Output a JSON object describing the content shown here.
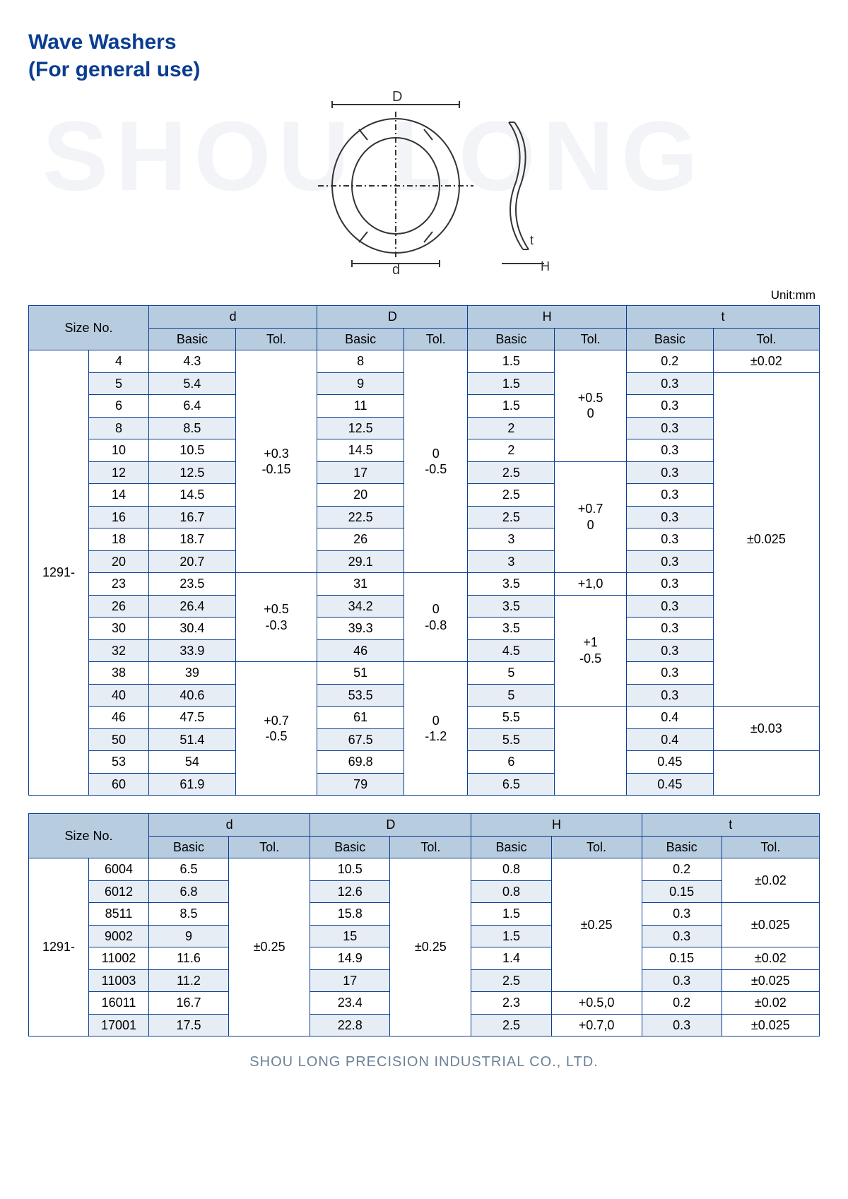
{
  "watermark": "SHOU LONG",
  "title_line1": "Wave Washers",
  "title_line2": "(For general use)",
  "unit_label": "Unit:mm",
  "footer": "SHOU LONG PRECISION INDUSTRIAL CO., LTD.",
  "diagram": {
    "label_D": "D",
    "label_d": "d",
    "label_t": "t",
    "label_H": "H"
  },
  "headers": {
    "size_no": "Size No.",
    "d": "d",
    "D": "D",
    "H": "H",
    "t": "t",
    "basic": "Basic",
    "tol": "Tol."
  },
  "prefix": "1291-",
  "table1": {
    "rows": [
      {
        "s": "4",
        "d": "4.3",
        "D": "8",
        "H": "1.5",
        "t": "0.2",
        "w": true
      },
      {
        "s": "5",
        "d": "5.4",
        "D": "9",
        "H": "1.5",
        "t": "0.3",
        "w": false
      },
      {
        "s": "6",
        "d": "6.4",
        "D": "11",
        "H": "1.5",
        "t": "0.3",
        "w": true
      },
      {
        "s": "8",
        "d": "8.5",
        "D": "12.5",
        "H": "2",
        "t": "0.3",
        "w": false
      },
      {
        "s": "10",
        "d": "10.5",
        "D": "14.5",
        "H": "2",
        "t": "0.3",
        "w": true
      },
      {
        "s": "12",
        "d": "12.5",
        "D": "17",
        "H": "2.5",
        "t": "0.3",
        "w": false
      },
      {
        "s": "14",
        "d": "14.5",
        "D": "20",
        "H": "2.5",
        "t": "0.3",
        "w": true
      },
      {
        "s": "16",
        "d": "16.7",
        "D": "22.5",
        "H": "2.5",
        "t": "0.3",
        "w": false
      },
      {
        "s": "18",
        "d": "18.7",
        "D": "26",
        "H": "3",
        "t": "0.3",
        "w": true
      },
      {
        "s": "20",
        "d": "20.7",
        "D": "29.1",
        "H": "3",
        "t": "0.3",
        "w": false
      },
      {
        "s": "23",
        "d": "23.5",
        "D": "31",
        "H": "3.5",
        "t": "0.3",
        "w": true
      },
      {
        "s": "26",
        "d": "26.4",
        "D": "34.2",
        "H": "3.5",
        "t": "0.3",
        "w": false
      },
      {
        "s": "30",
        "d": "30.4",
        "D": "39.3",
        "H": "3.5",
        "t": "0.3",
        "w": true
      },
      {
        "s": "32",
        "d": "33.9",
        "D": "46",
        "H": "4.5",
        "t": "0.3",
        "w": false
      },
      {
        "s": "38",
        "d": "39",
        "D": "51",
        "H": "5",
        "t": "0.3",
        "w": true
      },
      {
        "s": "40",
        "d": "40.6",
        "D": "53.5",
        "H": "5",
        "t": "0.3",
        "w": false
      },
      {
        "s": "46",
        "d": "47.5",
        "D": "61",
        "H": "5.5",
        "t": "0.4",
        "w": true
      },
      {
        "s": "50",
        "d": "51.4",
        "D": "67.5",
        "H": "5.5",
        "t": "0.4",
        "w": false
      },
      {
        "s": "53",
        "d": "54",
        "D": "69.8",
        "H": "6",
        "t": "0.45",
        "w": true
      },
      {
        "s": "60",
        "d": "61.9",
        "D": "79",
        "H": "6.5",
        "t": "0.45",
        "w": false
      }
    ],
    "d_tol": [
      {
        "span": 10,
        "v": "+0.3\n-0.15"
      },
      {
        "span": 4,
        "v": "+0.5\n-0.3"
      },
      {
        "span": 6,
        "v": "+0.7\n-0.5"
      }
    ],
    "D_tol": [
      {
        "span": 10,
        "v": "0\n-0.5"
      },
      {
        "span": 4,
        "v": "0\n-0.8"
      },
      {
        "span": 6,
        "v": "0\n-1.2"
      }
    ],
    "H_tol": [
      {
        "span": 5,
        "v": "+0.5\n0"
      },
      {
        "span": 5,
        "v": "+0.7\n0"
      },
      {
        "span": 1,
        "v": "+1,0"
      },
      {
        "span": 5,
        "v": "+1\n-0.5"
      },
      {
        "span": 4,
        "v": ""
      }
    ],
    "t_tol": [
      {
        "span": 1,
        "v": "±0.02"
      },
      {
        "span": 15,
        "v": "±0.025"
      },
      {
        "span": 2,
        "v": "±0.03"
      },
      {
        "span": 2,
        "v": ""
      }
    ]
  },
  "table2": {
    "rows": [
      {
        "s": "6004",
        "d": "6.5",
        "D": "10.5",
        "H": "0.8",
        "t": "0.2",
        "w": true
      },
      {
        "s": "6012",
        "d": "6.8",
        "D": "12.6",
        "H": "0.8",
        "t": "0.15",
        "w": false
      },
      {
        "s": "8511",
        "d": "8.5",
        "D": "15.8",
        "H": "1.5",
        "t": "0.3",
        "w": true
      },
      {
        "s": "9002",
        "d": "9",
        "D": "15",
        "H": "1.5",
        "t": "0.3",
        "w": false
      },
      {
        "s": "11002",
        "d": "11.6",
        "D": "14.9",
        "H": "1.4",
        "t": "0.15",
        "w": true
      },
      {
        "s": "11003",
        "d": "11.2",
        "D": "17",
        "H": "2.5",
        "t": "0.3",
        "w": false
      },
      {
        "s": "16011",
        "d": "16.7",
        "D": "23.4",
        "H": "2.3",
        "t": "0.2",
        "w": true
      },
      {
        "s": "17001",
        "d": "17.5",
        "D": "22.8",
        "H": "2.5",
        "t": "0.3",
        "w": false
      }
    ],
    "d_tol": [
      {
        "span": 8,
        "v": "±0.25"
      }
    ],
    "D_tol": [
      {
        "span": 8,
        "v": "±0.25"
      }
    ],
    "H_tol": [
      {
        "span": 6,
        "v": "±0.25"
      },
      {
        "span": 1,
        "v": "+0.5,0"
      },
      {
        "span": 1,
        "v": "+0.7,0"
      }
    ],
    "t_tol": [
      {
        "span": 2,
        "v": "±0.02"
      },
      {
        "span": 2,
        "v": "±0.025"
      },
      {
        "span": 1,
        "v": "±0.02"
      },
      {
        "span": 1,
        "v": "±0.025"
      },
      {
        "span": 1,
        "v": "±0.02"
      },
      {
        "span": 1,
        "v": "±0.025"
      }
    ]
  }
}
